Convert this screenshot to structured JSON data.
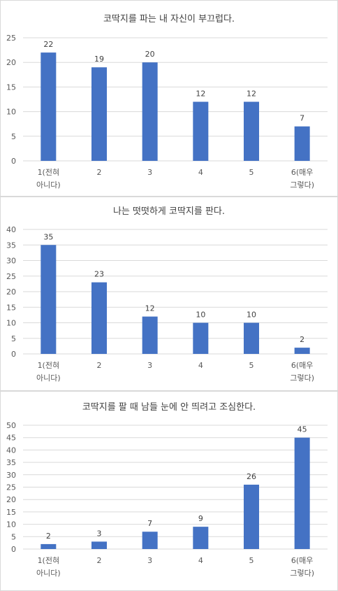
{
  "chart_data": [
    {
      "type": "bar",
      "title": "코딱지를 파는 내 자신이 부끄럽다.",
      "categories": [
        [
          "1(전혀",
          "아니다)"
        ],
        [
          "2"
        ],
        [
          "3"
        ],
        [
          "4"
        ],
        [
          "5"
        ],
        [
          "6(매우",
          "그렇다)"
        ]
      ],
      "values": [
        22,
        19,
        20,
        12,
        12,
        7
      ],
      "y_ticks": [
        0,
        5,
        10,
        15,
        20,
        25
      ],
      "ylim": [
        0,
        25
      ],
      "grid": true,
      "color": "#4472c4"
    },
    {
      "type": "bar",
      "title": "나는 떳떳하게 코딱지를 판다.",
      "categories": [
        [
          "1(전혀",
          "아니다)"
        ],
        [
          "2"
        ],
        [
          "3"
        ],
        [
          "4"
        ],
        [
          "5"
        ],
        [
          "6(매우",
          "그렇다)"
        ]
      ],
      "values": [
        35,
        23,
        12,
        10,
        10,
        2
      ],
      "y_ticks": [
        0,
        5,
        10,
        15,
        20,
        25,
        30,
        35,
        40
      ],
      "ylim": [
        0,
        40
      ],
      "grid": true,
      "color": "#4472c4"
    },
    {
      "type": "bar",
      "title": "코딱지를 팔 때 남들 눈에 안 띄려고 조심한다.",
      "categories": [
        [
          "1(전혀",
          "아니다)"
        ],
        [
          "2"
        ],
        [
          "3"
        ],
        [
          "4"
        ],
        [
          "5"
        ],
        [
          "6(매우",
          "그렇다)"
        ]
      ],
      "values": [
        2,
        3,
        7,
        9,
        26,
        45
      ],
      "y_ticks": [
        0,
        5,
        10,
        15,
        20,
        25,
        30,
        35,
        40,
        45,
        50
      ],
      "ylim": [
        0,
        50
      ],
      "grid": true,
      "color": "#4472c4"
    }
  ]
}
